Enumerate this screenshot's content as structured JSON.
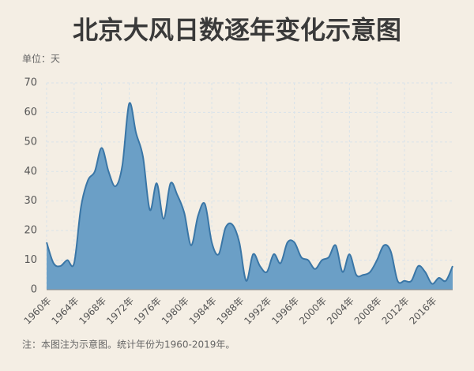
{
  "chart_data": {
    "type": "area",
    "title": "北京大风日数逐年变化示意图",
    "unit_label": "单位：天",
    "note": "注：本图注为示意图。统计年份为1960-2019年。",
    "categories": [
      "1960年",
      null,
      null,
      null,
      "1964年",
      null,
      null,
      null,
      "1968年",
      null,
      null,
      null,
      "1972年",
      null,
      null,
      null,
      "1976年",
      null,
      null,
      null,
      "1980年",
      null,
      null,
      null,
      "1984年",
      null,
      null,
      null,
      "1988年",
      null,
      null,
      null,
      "1992年",
      null,
      null,
      null,
      "1996年",
      null,
      null,
      null,
      "2000年",
      null,
      null,
      null,
      "2004年",
      null,
      null,
      null,
      "2008年",
      null,
      null,
      null,
      "2012年",
      null,
      null,
      null,
      "2016年",
      null,
      null,
      null
    ],
    "values": [
      16,
      9,
      8,
      10,
      9,
      28,
      37,
      40,
      48,
      40,
      35,
      42,
      63,
      53,
      45,
      27,
      36,
      24,
      36,
      32,
      26,
      15,
      25,
      29,
      16,
      12,
      21,
      22,
      16,
      3,
      12,
      8,
      6,
      12,
      9,
      16,
      16,
      11,
      10,
      7,
      10,
      11,
      15,
      6,
      12,
      5,
      5,
      6,
      10,
      15,
      13,
      3,
      3,
      3,
      8,
      6,
      2,
      4,
      3,
      8
    ],
    "color": "#6b9fc6",
    "line_color": "#3a76a6",
    "ylim": [
      0,
      70
    ],
    "yticks": [
      0,
      10,
      20,
      30,
      40,
      50,
      60,
      70
    ],
    "grid": true
  }
}
